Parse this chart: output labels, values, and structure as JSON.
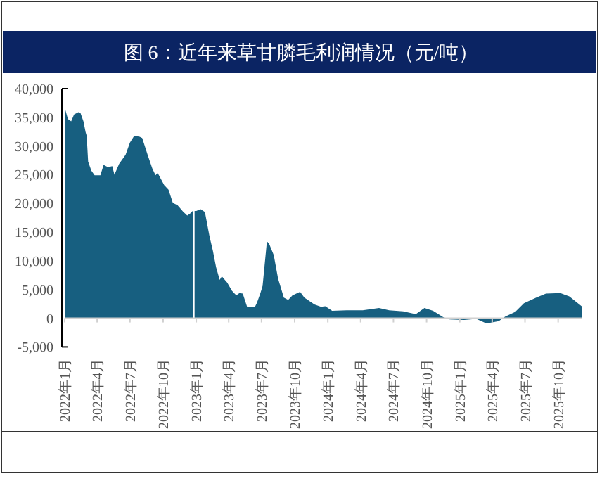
{
  "chart_data": {
    "type": "area",
    "title": "图 6：近年来草甘膦毛利润情况（元/吨）",
    "color": "#175f80",
    "x": [
      "2022-01-01",
      "2022-01-10",
      "2022-01-19",
      "2022-01-27",
      "2022-02-08",
      "2022-02-14",
      "2022-02-22",
      "2022-02-28",
      "2022-03-03",
      "2022-03-07",
      "2022-03-16",
      "2022-03-25",
      "2022-04-10",
      "2022-04-19",
      "2022-05-01",
      "2022-05-13",
      "2022-05-19",
      "2022-06-01",
      "2022-06-19",
      "2022-07-01",
      "2022-07-13",
      "2022-07-28",
      "2022-08-04",
      "2022-08-19",
      "2022-09-01",
      "2022-09-10",
      "2022-09-16",
      "2022-10-04",
      "2022-10-16",
      "2022-10-28",
      "2022-11-10",
      "2022-11-25",
      "2022-12-07",
      "2022-12-16",
      "2022-12-22",
      "2022-12-25",
      "2023-01-01",
      "2023-01-13",
      "2023-01-25",
      "2023-02-07",
      "2023-02-16",
      "2023-02-25",
      "2023-03-07",
      "2023-03-13",
      "2023-03-28",
      "2023-04-10",
      "2023-04-22",
      "2023-05-01",
      "2023-05-10",
      "2023-05-22",
      "2023-06-13",
      "2023-06-19",
      "2023-06-28",
      "2023-07-04",
      "2023-07-16",
      "2023-07-22",
      "2023-08-04",
      "2023-08-16",
      "2023-09-01",
      "2023-09-13",
      "2023-09-25",
      "2023-10-16",
      "2023-10-28",
      "2023-11-25",
      "2023-12-13",
      "2023-12-25",
      "2024-01-13",
      "2024-02-22",
      "2024-04-07",
      "2024-05-22",
      "2024-06-19",
      "2024-07-28",
      "2024-09-01",
      "2024-09-25",
      "2024-10-19",
      "2024-11-16",
      "2024-12-04",
      "2025-01-13",
      "2025-02-16",
      "2025-03-16",
      "2025-04-19",
      "2025-05-07",
      "2025-06-04",
      "2025-06-28",
      "2025-08-01",
      "2025-08-28",
      "2025-10-07",
      "2025-11-01",
      "2025-12-07"
    ],
    "values": [
      36700,
      34700,
      34300,
      35500,
      35900,
      35700,
      34300,
      32400,
      31800,
      27300,
      25700,
      24900,
      24900,
      26700,
      26300,
      26500,
      25000,
      26900,
      28500,
      30600,
      31800,
      31600,
      31400,
      28500,
      26100,
      24900,
      25300,
      23200,
      22400,
      20100,
      19700,
      18600,
      17900,
      18300,
      18700,
      null,
      18700,
      19000,
      18500,
      14200,
      11800,
      8900,
      6700,
      7300,
      6200,
      4800,
      4000,
      4400,
      4300,
      2000,
      2000,
      2800,
      4400,
      5600,
      13400,
      13000,
      11000,
      6900,
      3600,
      3200,
      4000,
      4600,
      3600,
      2400,
      2000,
      2100,
      1300,
      1400,
      1400,
      1800,
      1400,
      1200,
      700,
      1800,
      1300,
      200,
      -200,
      -300,
      -100,
      -900,
      -500,
      300,
      1100,
      2600,
      3600,
      4300,
      4400,
      3800,
      2000
    ],
    "xlim": [
      "2022-01-01",
      "2025-12-07"
    ],
    "xticks": [
      {
        "value": "2022-01-01",
        "label": "2022年1月"
      },
      {
        "value": "2022-04-01",
        "label": "2022年4月"
      },
      {
        "value": "2022-07-01",
        "label": "2022年7月"
      },
      {
        "value": "2022-10-01",
        "label": "2022年10月"
      },
      {
        "value": "2023-01-01",
        "label": "2023年1月"
      },
      {
        "value": "2023-04-01",
        "label": "2023年4月"
      },
      {
        "value": "2023-07-01",
        "label": "2023年7月"
      },
      {
        "value": "2023-10-01",
        "label": "2023年10月"
      },
      {
        "value": "2024-01-01",
        "label": "2024年1月"
      },
      {
        "value": "2024-04-01",
        "label": "2024年4月"
      },
      {
        "value": "2024-07-01",
        "label": "2024年7月"
      },
      {
        "value": "2024-10-01",
        "label": "2024年10月"
      },
      {
        "value": "2025-01-01",
        "label": "2025年1月"
      },
      {
        "value": "2025-04-01",
        "label": "2025年4月"
      },
      {
        "value": "2025-07-01",
        "label": "2025年7月"
      },
      {
        "value": "2025-10-01",
        "label": "2025年10月"
      }
    ],
    "ylim": [
      -5000,
      40000
    ],
    "yticks": [
      {
        "value": -5000,
        "label": "-5,000"
      },
      {
        "value": 0,
        "label": "0"
      },
      {
        "value": 5000,
        "label": "5,000"
      },
      {
        "value": 10000,
        "label": "10,000"
      },
      {
        "value": 15000,
        "label": "15,000"
      },
      {
        "value": 20000,
        "label": "20,000"
      },
      {
        "value": 25000,
        "label": "25,000"
      },
      {
        "value": 30000,
        "label": "30,000"
      },
      {
        "value": 35000,
        "label": "35,000"
      },
      {
        "value": 40000,
        "label": "40,000"
      }
    ]
  }
}
